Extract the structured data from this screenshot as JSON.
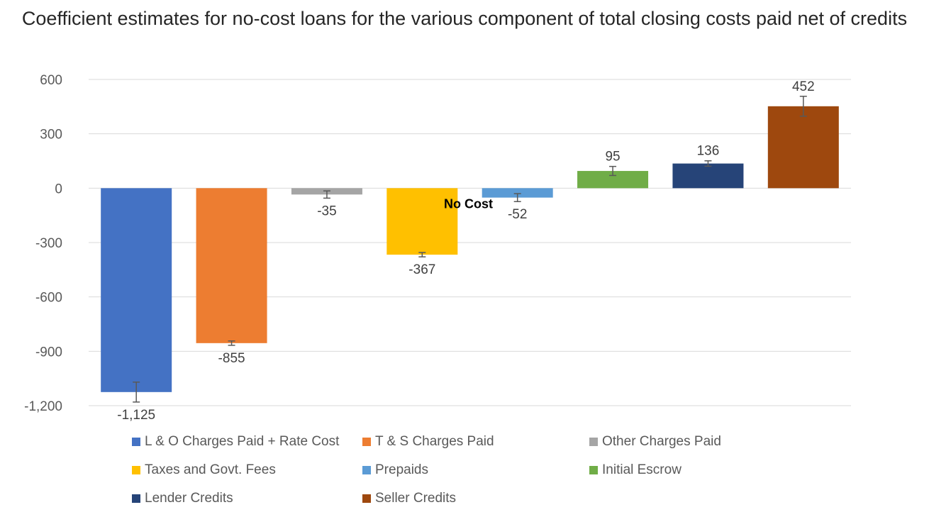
{
  "chart_data": {
    "type": "bar",
    "title": "Coefficient estimates for no-cost loans for the various component of total closing costs paid net of credits",
    "xlabel": "",
    "ylabel": "",
    "ylim": [
      -1200,
      600
    ],
    "yticks": [
      600,
      300,
      0,
      -300,
      -600,
      -900,
      -1200
    ],
    "ytick_labels": [
      "600",
      "300",
      "0",
      "-300",
      "-600",
      "-900",
      "-1,200"
    ],
    "grid": "horizontal",
    "legend_position": "bottom",
    "annotation": "No Cost",
    "series": [
      {
        "name": "L & O Charges Paid + Rate Cost",
        "value": -1125,
        "label": "-1,125",
        "error": 55,
        "color": "#4472C4"
      },
      {
        "name": "T & S Charges Paid",
        "value": -855,
        "label": "-855",
        "error": 12,
        "color": "#ED7D31"
      },
      {
        "name": "Other Charges Paid",
        "value": -35,
        "label": "-35",
        "error": 20,
        "color": "#A5A5A5"
      },
      {
        "name": "Taxes and Govt. Fees",
        "value": -367,
        "label": "-367",
        "error": 12,
        "color": "#FFC000"
      },
      {
        "name": "Prepaids",
        "value": -52,
        "label": "-52",
        "error": 22,
        "color": "#5B9BD5"
      },
      {
        "name": "Initial Escrow",
        "value": 95,
        "label": "95",
        "error": 25,
        "color": "#70AD47"
      },
      {
        "name": "Lender Credits",
        "value": 136,
        "label": "136",
        "error": 15,
        "color": "#264478"
      },
      {
        "name": "Seller Credits",
        "value": 452,
        "label": "452",
        "error": 55,
        "color": "#9E480E"
      }
    ]
  }
}
